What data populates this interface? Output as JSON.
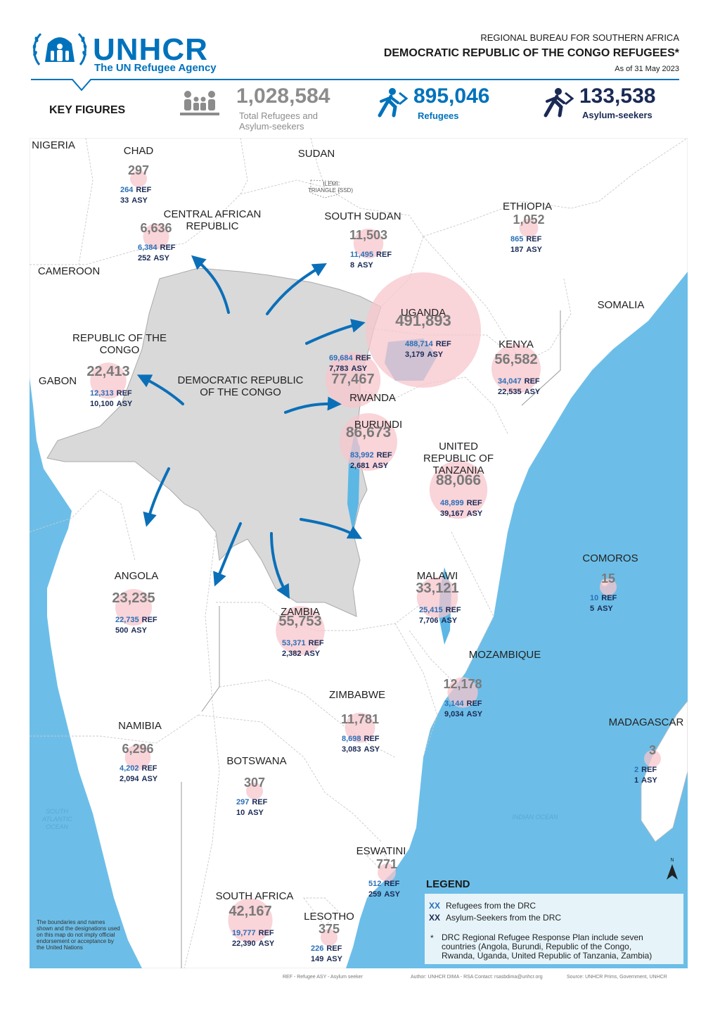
{
  "header": {
    "logo_text": "UNHCR",
    "logo_subtitle": "The UN Refugee Agency",
    "bureau": "REGIONAL BUREAU FOR SOUTHERN AFRICA",
    "title": "DEMOCRATIC REPUBLIC OF THE CONGO REFUGEES*",
    "date": "As of 31 May 2023"
  },
  "key_figures": {
    "label": "KEY FIGURES",
    "total_value": "1,028,584",
    "total_label_1": "Total  Refugees and",
    "total_label_2": "Asylum-seekers",
    "refugees_value": "895,046",
    "refugees_label": "Refugees",
    "asylum_value": "133,538",
    "asylum_label": "Asylum-seekers"
  },
  "map": {
    "labels": {
      "nigeria": "NIGERIA",
      "sudan": "SUDAN",
      "ilemi_1": "ILEMI",
      "ilemi_2": "TRIANGLE (SSD)",
      "ethiopia": "ETHIOPIA",
      "somalia": "SOMALIA",
      "cameroon": "CAMEROON",
      "gabon": "GABON",
      "drc_1": "DEMOCRATIC REPUBLIC",
      "drc_2": "OF THE CONGO"
    },
    "oceans": {
      "south_atlantic_1": "SOUTH",
      "south_atlantic_2": "ATLANTIC",
      "south_atlantic_3": "OCEAN",
      "indian": "INDIAN OCEAN"
    },
    "ref_label": "REF",
    "asy_label": "ASY",
    "countries": [
      {
        "key": "chad",
        "name": "CHAD",
        "total": "297",
        "ref": "264",
        "asy": "33"
      },
      {
        "key": "car",
        "name": "CENTRAL AFRICAN\nREPUBLIC",
        "total": "6,636",
        "ref": "6,384",
        "asy": "252"
      },
      {
        "key": "south_sudan",
        "name": "SOUTH SUDAN",
        "total": "11,503",
        "ref": "11,495",
        "asy": "8"
      },
      {
        "key": "ethiopia",
        "name": "",
        "total": "1,052",
        "ref": "865",
        "asy": "187"
      },
      {
        "key": "uganda",
        "name": "UGANDA",
        "total": "491,893",
        "ref": "488,714",
        "asy": "3,179"
      },
      {
        "key": "kenya",
        "name": "KENYA",
        "total": "56,582",
        "ref": "34,047",
        "asy": "22,535"
      },
      {
        "key": "rwanda",
        "name": "RWANDA",
        "total": "77,467",
        "ref": "69,684",
        "asy": "7,783"
      },
      {
        "key": "burundi",
        "name": "BURUNDI",
        "total": "86,673",
        "ref": "83,992",
        "asy": "2,681"
      },
      {
        "key": "congo",
        "name": "REPUBLIC OF THE\nCONGO",
        "total": "22,413",
        "ref": "12,313",
        "asy": "10,100"
      },
      {
        "key": "tanzania",
        "name": "UNITED\nREPUBLIC OF\nTANZANIA",
        "total": "88,066",
        "ref": "48,899",
        "asy": "39,167"
      },
      {
        "key": "angola",
        "name": "ANGOLA",
        "total": "23,235",
        "ref": "22,735",
        "asy": "500"
      },
      {
        "key": "zambia",
        "name": "ZAMBIA",
        "total": "55,753",
        "ref": "53,371",
        "asy": "2,382"
      },
      {
        "key": "malawi",
        "name": "MALAWI",
        "total": "33,121",
        "ref": "25,415",
        "asy": "7,706"
      },
      {
        "key": "comoros",
        "name": "COMOROS",
        "total": "15",
        "ref": "10",
        "asy": "5"
      },
      {
        "key": "mozambique",
        "name": "MOZAMBIQUE",
        "total": "12,178",
        "ref": "3,144",
        "asy": "9,034"
      },
      {
        "key": "zimbabwe",
        "name": "ZIMBABWE",
        "total": "11,781",
        "ref": "8,698",
        "asy": "3,083"
      },
      {
        "key": "madagascar",
        "name": "MADAGASCAR",
        "total": "3",
        "ref": "2",
        "asy": "1"
      },
      {
        "key": "namibia",
        "name": "NAMIBIA",
        "total": "6,296",
        "ref": "4,202",
        "asy": "2,094"
      },
      {
        "key": "botswana",
        "name": "BOTSWANA",
        "total": "307",
        "ref": "297",
        "asy": "10"
      },
      {
        "key": "eswatini",
        "name": "ESWATINI",
        "total": "771",
        "ref": "512",
        "asy": "259"
      },
      {
        "key": "south_africa",
        "name": "SOUTH AFRICA",
        "total": "42,167",
        "ref": "19,777",
        "asy": "22,390"
      },
      {
        "key": "lesotho",
        "name": "LESOTHO",
        "total": "375",
        "ref": "226",
        "asy": "149"
      }
    ]
  },
  "legend": {
    "title": "LEGEND",
    "ref_marker": "XX",
    "ref_text": "Refugees from the DRC",
    "asy_marker": "XX",
    "asy_text": "Asylum-Seekers  from the DRC",
    "note_marker": "*",
    "note_1": "DRC Regional Refugee Response Plan include seven",
    "note_2": "countries (Angola, Burundi, Republic of the Congo,",
    "note_3": "Rwanda, Uganda, United Republic of Tanzania, Zambia)"
  },
  "disclaimer": "The boundaries and names shown and the designations used on this map do not imply official endorsement or acceptance by the United Nations",
  "footer": {
    "abbrev": "REF - Refugee     ASY - Asylum seeker",
    "author": "Author: UNHCR DIMA - RSA    Contact: rsasbdima@unhcr.org",
    "source": "Source: UNHCR Prims, Government, UNHCR"
  },
  "colors": {
    "brand_blue": "#0072bc",
    "bubble_fill": "#f7c6cc",
    "drc_fill": "#d9d9d9",
    "sea": "#5cb7e5",
    "arrow": "#0b6fb8"
  }
}
